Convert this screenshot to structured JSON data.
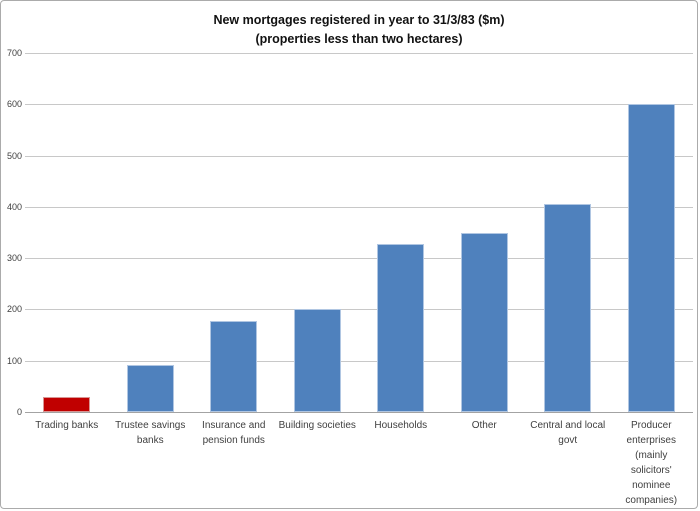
{
  "title": {
    "line1": "New mortgages registered in year to 31/3/83 ($m)",
    "line2": "(properties less than two hectares)"
  },
  "chart_data": {
    "type": "bar",
    "title": "New mortgages registered in year to 31/3/83 ($m)",
    "subtitle": "(properties less than two hectares)",
    "categories": [
      "Trading banks",
      "Trustee savings banks",
      "Insurance and pension funds",
      "Building societies",
      "Households",
      "Other",
      "Central and local govt",
      "Producer enterprises (mainly solicitors' nominee companies)"
    ],
    "category_label_lines": [
      [
        "Trading banks"
      ],
      [
        "Trustee savings",
        "banks"
      ],
      [
        "Insurance and",
        "pension funds"
      ],
      [
        "Building societies"
      ],
      [
        "Households"
      ],
      [
        "Other"
      ],
      [
        "Central and local",
        "govt"
      ],
      [
        "Producer",
        "enterprises",
        "(mainly",
        "solicitors'",
        "nominee",
        "companies)"
      ]
    ],
    "values": [
      30,
      92,
      177,
      201,
      328,
      350,
      405,
      600
    ],
    "bar_colors": [
      "#C00000",
      "#4F81BD",
      "#4F81BD",
      "#4F81BD",
      "#4F81BD",
      "#4F81BD",
      "#4F81BD",
      "#4F81BD"
    ],
    "bar_border_colors": [
      "#D99694",
      "#B0C6E2",
      "#B0C6E2",
      "#B0C6E2",
      "#B0C6E2",
      "#B0C6E2",
      "#B0C6E2",
      "#B0C6E2"
    ],
    "xlabel": "",
    "ylabel": "",
    "ylim": [
      0,
      700
    ],
    "yticks": [
      0,
      100,
      200,
      300,
      400,
      500,
      600,
      700
    ],
    "grid": true,
    "legend_position": "none",
    "colors": {
      "highlight_bar": "#C00000",
      "default_bar": "#4F81BD",
      "gridline": "#C8C8C8",
      "axis_line": "#A3A3A3",
      "axis_text": "#404040",
      "title_text": "#111111",
      "chart_border": "#ABABAB",
      "background": "#FFFFFF"
    }
  }
}
